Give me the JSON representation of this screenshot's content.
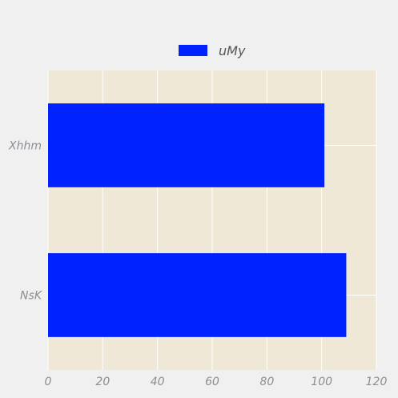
{
  "chart_data": {
    "type": "bar",
    "orientation": "horizontal",
    "categories": [
      "NsK",
      "Xhhm"
    ],
    "series": [
      {
        "name": "uMy",
        "values": [
          109,
          101
        ],
        "color": "#0022ff"
      }
    ],
    "xlim": [
      0,
      120
    ],
    "x_ticks": [
      0,
      20,
      40,
      60,
      80,
      100,
      120
    ],
    "grid": true,
    "legend_position": "top-center",
    "colors": {
      "background": "#f0f0f0",
      "plot_background": "#efe8d7",
      "grid": "#ffffff",
      "tick_text": "#8a8f94",
      "legend_text": "#555555"
    }
  }
}
